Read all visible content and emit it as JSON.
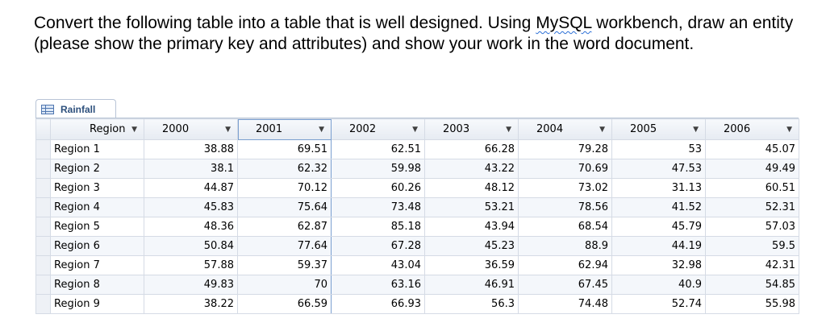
{
  "instructions": {
    "before": "Convert the following table into a table that is well designed. Using ",
    "flagged_word": "MySQL",
    "after": " workbench, draw an entity (please show the primary key and attributes) and show your work in the word document."
  },
  "tab": {
    "label": "Rainfall",
    "icon": "table-icon"
  },
  "columns": [
    "Region",
    "2000",
    "2001",
    "2002",
    "2003",
    "2004",
    "2005",
    "2006"
  ],
  "active_column": "2001",
  "rows": [
    [
      "Region 1",
      "38.88",
      "69.51",
      "62.51",
      "66.28",
      "79.28",
      "53",
      "45.07"
    ],
    [
      "Region 2",
      "38.1",
      "62.32",
      "59.98",
      "43.22",
      "70.69",
      "47.53",
      "49.49"
    ],
    [
      "Region 3",
      "44.87",
      "70.12",
      "60.26",
      "48.12",
      "73.02",
      "31.13",
      "60.51"
    ],
    [
      "Region 4",
      "45.83",
      "75.64",
      "73.48",
      "53.21",
      "78.56",
      "41.52",
      "52.31"
    ],
    [
      "Region 5",
      "48.36",
      "62.87",
      "85.18",
      "43.94",
      "68.54",
      "45.79",
      "57.03"
    ],
    [
      "Region 6",
      "50.84",
      "77.64",
      "67.28",
      "45.23",
      "88.9",
      "44.19",
      "59.5"
    ],
    [
      "Region 7",
      "57.88",
      "59.37",
      "43.04",
      "36.59",
      "62.94",
      "32.98",
      "42.31"
    ],
    [
      "Region 8",
      "49.83",
      "70",
      "63.16",
      "46.91",
      "67.45",
      "40.9",
      "54.85"
    ],
    [
      "Region 9",
      "38.22",
      "66.59",
      "66.93",
      "56.3",
      "74.48",
      "52.74",
      "55.98"
    ]
  ]
}
